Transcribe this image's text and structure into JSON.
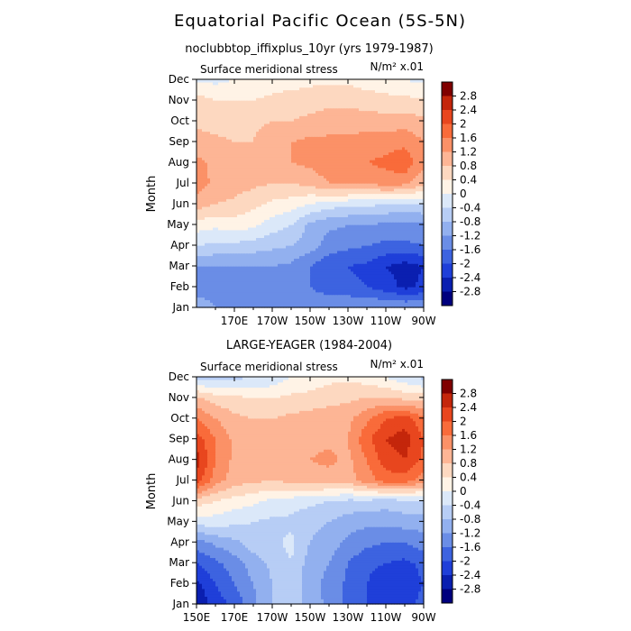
{
  "figure": {
    "title": "Equatorial Pacific Ocean (5S-5N)"
  },
  "colorbar_levels": [
    "2.8",
    "2.4",
    "2",
    "1.6",
    "1.2",
    "0.8",
    "0.4",
    "0",
    "-0.4",
    "-0.8",
    "-1.2",
    "-1.6",
    "-2",
    "-2.4",
    "-2.8"
  ],
  "colorbar_colors": [
    "#800000",
    "#c4260b",
    "#e8461e",
    "#f96b3a",
    "#fb9167",
    "#fdb595",
    "#fdd8c0",
    "#fff3e6",
    "#dbe8f9",
    "#b7cdf5",
    "#92b0ef",
    "#6a8de6",
    "#3d63e0",
    "#1f3fd9",
    "#0a1fb0",
    "#00007e"
  ],
  "chart_data": [
    {
      "type": "heatmap",
      "name": "noclubbtop_iffixplus_10yr",
      "subtitle": "noclubbtop_iffixplus_10yr (yrs 1979-1987)",
      "variable_label": "Surface meridional stress",
      "units_label": "N/m² x.01",
      "ylabel": "Month",
      "xlabel": "",
      "x_tick_labels": [
        "170E",
        "170W",
        "150W",
        "130W",
        "110W",
        "90W"
      ],
      "y_tick_labels": [
        "Jan",
        "Feb",
        "Mar",
        "Apr",
        "May",
        "Jun",
        "Jul",
        "Aug",
        "Sep",
        "Oct",
        "Nov",
        "Dec"
      ],
      "x": [
        150,
        160,
        170,
        180,
        190,
        200,
        210,
        220,
        230,
        240,
        250,
        260,
        270
      ],
      "xlim": [
        150,
        270
      ],
      "ylim": [
        1,
        12
      ],
      "z_range": [
        -2.8,
        2.8
      ],
      "values": [
        [
          -1.0,
          -1.2,
          -1.2,
          -1.2,
          -1.2,
          -1.2,
          -1.3,
          -1.3,
          -1.2,
          -1.2,
          -1.2,
          -1.2,
          -1.2
        ],
        [
          -1.4,
          -1.3,
          -1.3,
          -1.3,
          -1.3,
          -1.4,
          -1.6,
          -1.8,
          -1.9,
          -2.0,
          -2.2,
          -2.5,
          -2.3
        ],
        [
          -1.2,
          -1.2,
          -1.2,
          -1.2,
          -1.2,
          -1.3,
          -1.6,
          -1.9,
          -2.0,
          -2.1,
          -2.4,
          -2.6,
          -2.4
        ],
        [
          -0.4,
          -0.5,
          -0.5,
          -0.6,
          -0.7,
          -0.8,
          -1.0,
          -1.4,
          -1.5,
          -1.6,
          -1.7,
          -1.7,
          -1.6
        ],
        [
          0.2,
          0.1,
          0.2,
          0.1,
          -0.2,
          -0.4,
          -0.9,
          -1.1,
          -1.2,
          -1.2,
          -1.3,
          -1.3,
          -1.3
        ],
        [
          1.0,
          0.8,
          0.7,
          0.5,
          0.3,
          0.2,
          0.0,
          -0.2,
          -0.3,
          -0.3,
          -0.4,
          -0.5,
          -0.4
        ],
        [
          1.4,
          1.1,
          1.0,
          0.9,
          0.8,
          0.8,
          0.9,
          1.2,
          1.3,
          1.2,
          1.4,
          1.3,
          0.9
        ],
        [
          1.3,
          1.1,
          1.0,
          1.0,
          1.1,
          1.2,
          1.3,
          1.5,
          1.6,
          1.6,
          1.7,
          1.9,
          1.3
        ],
        [
          1.0,
          0.9,
          0.8,
          0.8,
          1.1,
          1.2,
          1.3,
          1.3,
          1.3,
          1.4,
          1.4,
          1.5,
          1.2
        ],
        [
          0.7,
          0.6,
          0.6,
          0.7,
          0.8,
          0.8,
          0.9,
          1.0,
          1.0,
          1.0,
          1.0,
          1.0,
          0.9
        ],
        [
          0.6,
          0.4,
          0.4,
          0.4,
          0.5,
          0.6,
          0.6,
          0.7,
          0.7,
          0.6,
          0.5,
          0.5,
          0.5
        ],
        [
          -0.1,
          -0.1,
          0.0,
          0.1,
          0.2,
          0.2,
          0.3,
          0.3,
          0.3,
          0.2,
          0.2,
          0.0,
          -0.1
        ]
      ]
    },
    {
      "type": "heatmap",
      "name": "LARGE-YEAGER",
      "subtitle": "LARGE-YEAGER (1984-2004)",
      "variable_label": "Surface meridional stress",
      "units_label": "N/m² x.01",
      "ylabel": "Month",
      "xlabel": "",
      "x_tick_labels": [
        "150E",
        "170E",
        "170W",
        "150W",
        "130W",
        "110W",
        "90W"
      ],
      "y_tick_labels": [
        "Jan",
        "Feb",
        "Mar",
        "Apr",
        "May",
        "Jun",
        "Jul",
        "Aug",
        "Sep",
        "Oct",
        "Nov",
        "Dec"
      ],
      "x": [
        150,
        160,
        170,
        180,
        190,
        200,
        210,
        220,
        230,
        240,
        250,
        260,
        270
      ],
      "xlim": [
        150,
        270
      ],
      "ylim": [
        1,
        12
      ],
      "z_range": [
        -2.8,
        2.8
      ],
      "values": [
        [
          -2.8,
          -2.2,
          -1.9,
          -1.3,
          -0.8,
          -0.5,
          -1.0,
          -1.3,
          -1.7,
          -2.0,
          -2.2,
          -2.1,
          -1.9
        ],
        [
          -2.5,
          -2.0,
          -1.6,
          -1.2,
          -0.8,
          -0.5,
          -1.1,
          -1.3,
          -1.7,
          -2.0,
          -2.3,
          -2.2,
          -2.0
        ],
        [
          -2.0,
          -1.7,
          -1.4,
          -1.0,
          -0.7,
          -0.4,
          -1.0,
          -1.2,
          -1.6,
          -1.9,
          -2.0,
          -2.1,
          -1.9
        ],
        [
          -1.4,
          -1.1,
          -0.9,
          -0.6,
          -0.5,
          -0.3,
          -0.8,
          -1.0,
          -1.3,
          -1.5,
          -1.6,
          -1.6,
          -1.4
        ],
        [
          -0.2,
          -0.2,
          -0.3,
          -0.4,
          -0.5,
          -0.5,
          -0.7,
          -0.8,
          -1.0,
          -1.1,
          -1.1,
          -1.0,
          -1.0
        ],
        [
          0.6,
          0.4,
          0.2,
          0.1,
          -0.1,
          -0.2,
          -0.3,
          -0.4,
          -0.5,
          -0.5,
          -0.6,
          -0.5,
          -0.5
        ],
        [
          2.2,
          1.4,
          1.0,
          0.9,
          0.8,
          0.9,
          1.0,
          1.0,
          1.0,
          1.4,
          1.8,
          1.8,
          1.4
        ],
        [
          2.6,
          1.6,
          1.1,
          0.9,
          0.9,
          1.0,
          1.2,
          1.3,
          1.1,
          1.6,
          2.2,
          2.4,
          1.9
        ],
        [
          2.2,
          1.6,
          1.1,
          0.9,
          0.9,
          1.0,
          1.1,
          1.1,
          1.2,
          1.9,
          2.4,
          2.6,
          2.0
        ],
        [
          1.6,
          1.2,
          0.9,
          0.8,
          0.8,
          0.9,
          1.0,
          1.1,
          1.1,
          1.5,
          2.0,
          2.2,
          1.7
        ],
        [
          0.9,
          0.6,
          0.5,
          0.4,
          0.4,
          0.5,
          0.5,
          0.6,
          0.7,
          0.8,
          0.8,
          0.7,
          0.6
        ],
        [
          -0.6,
          -0.6,
          -0.5,
          -0.4,
          -0.3,
          0.0,
          0.2,
          0.3,
          0.3,
          0.2,
          0.0,
          -0.3,
          -0.5
        ]
      ]
    }
  ]
}
